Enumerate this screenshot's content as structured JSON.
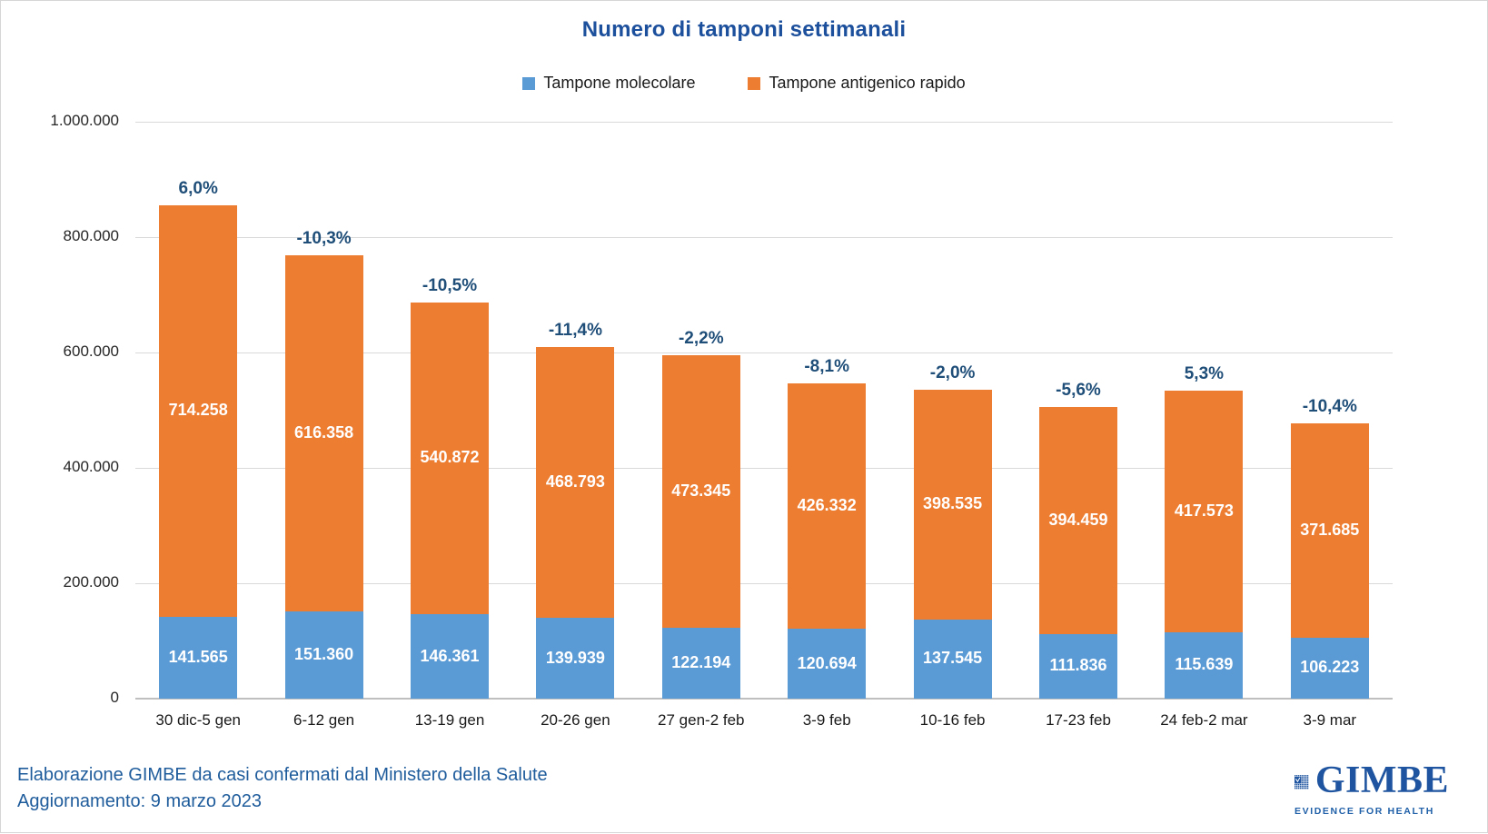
{
  "title": "Numero di tamponi settimanali",
  "legend": {
    "items": [
      {
        "label": "Tampone molecolare",
        "color": "#5b9bd5"
      },
      {
        "label": "Tampone antigenico rapido",
        "color": "#ed7d31"
      }
    ]
  },
  "chart_data": {
    "type": "bar",
    "stacked": true,
    "title": "Numero di tamponi settimanali",
    "xlabel": "",
    "ylabel": "",
    "ylim": [
      0,
      1000000
    ],
    "grid": true,
    "legend_position": "top-center",
    "y_ticks": [
      "0",
      "200.000",
      "400.000",
      "600.000",
      "800.000",
      "1.000.000"
    ],
    "y_tick_values": [
      0,
      200000,
      400000,
      600000,
      800000,
      1000000
    ],
    "categories": [
      "30 dic-5 gen",
      "6-12 gen",
      "13-19 gen",
      "20-26 gen",
      "27 gen-2 feb",
      "3-9 feb",
      "10-16 feb",
      "17-23 feb",
      "24 feb-2 mar",
      "3-9 mar"
    ],
    "series": [
      {
        "name": "Tampone molecolare",
        "color": "#5b9bd5",
        "values": [
          141565,
          151360,
          146361,
          139939,
          122194,
          120694,
          137545,
          111836,
          115639,
          106223
        ],
        "labels": [
          "141.565",
          "151.360",
          "146.361",
          "139.939",
          "122.194",
          "120.694",
          "137.545",
          "111.836",
          "115.639",
          "106.223"
        ]
      },
      {
        "name": "Tampone antigenico rapido",
        "color": "#ed7d31",
        "values": [
          714258,
          616358,
          540872,
          468793,
          473345,
          426332,
          398535,
          394459,
          417573,
          371685
        ],
        "labels": [
          "714.258",
          "616.358",
          "540.872",
          "468.793",
          "473.345",
          "426.332",
          "398.535",
          "394.459",
          "417.573",
          "371.685"
        ]
      }
    ],
    "percent_change_labels": [
      "6,0%",
      "-10,3%",
      "-10,5%",
      "-11,4%",
      "-2,2%",
      "-8,1%",
      "-2,0%",
      "-5,6%",
      "5,3%",
      "-10,4%"
    ]
  },
  "footer": {
    "line1": "Elaborazione GIMBE da casi confermati dal Ministero della Salute",
    "line2": "Aggiornamento: 9 marzo 2023"
  },
  "logo": {
    "name": "GIMBE",
    "tagline": "EVIDENCE FOR HEALTH",
    "icon": "gimbe-check-grid-icon",
    "color": "#1f55a0"
  },
  "colors": {
    "title": "#1c4f9c",
    "percent_label": "#1f4e79",
    "bar_value_label": "#ffffff",
    "footer_text": "#1f5c9c",
    "gridline": "#d9d9d9",
    "axis_line": "#bfbfbf",
    "molecolare": "#5b9bd5",
    "antigenico": "#ed7d31"
  }
}
